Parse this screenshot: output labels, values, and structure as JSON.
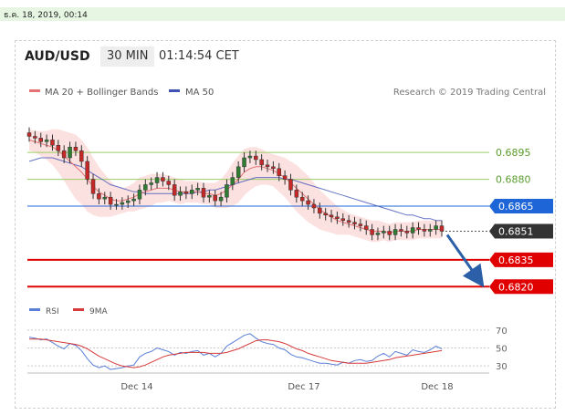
{
  "timestamp": "ธ.ค. 18, 2019, 00:14",
  "header": {
    "pair": "AUD/USD",
    "timeframe": "30 MIN",
    "time": "01:14:54 CET"
  },
  "legend": {
    "item1": "MA 20 + Bollinger Bands",
    "item2": "MA 50",
    "credit": "Research © 2019 Trading Central",
    "rsi": "RSI",
    "rsi_ma": "9MA"
  },
  "colors": {
    "ma20": "#e57373",
    "ma50": "#3f51b5",
    "band": "#fbd7d7",
    "support": "#e00000",
    "resistance": "#7cb342",
    "pivot": "#1e66d8",
    "price": "#333333",
    "rsi": "#5a7fd6",
    "rsi_ma": "#d63a3a",
    "arrow": "#2b5fa8"
  },
  "chart_data": {
    "type": "line",
    "main": {
      "series": "candlestick price with MA 20, Bollinger Bands and MA 50",
      "ylim": [
        0.6812,
        0.6918
      ],
      "x_ticks": [
        "Dec 14",
        "Dec 17",
        "Dec 18"
      ],
      "close": [
        0.6904,
        0.6903,
        0.6901,
        0.6902,
        0.6899,
        0.6896,
        0.6892,
        0.6898,
        0.6896,
        0.689,
        0.688,
        0.6872,
        0.6869,
        0.687,
        0.6866,
        0.6866,
        0.6867,
        0.6868,
        0.6869,
        0.6874,
        0.6877,
        0.6878,
        0.6881,
        0.6879,
        0.6877,
        0.6871,
        0.6873,
        0.6872,
        0.6874,
        0.6875,
        0.687,
        0.6871,
        0.6868,
        0.687,
        0.6877,
        0.6881,
        0.6887,
        0.6892,
        0.6893,
        0.6891,
        0.6888,
        0.6887,
        0.6886,
        0.6882,
        0.688,
        0.6874,
        0.687,
        0.6868,
        0.6866,
        0.6864,
        0.6861,
        0.686,
        0.6859,
        0.6858,
        0.6857,
        0.6856,
        0.6855,
        0.6854,
        0.6852,
        0.6849,
        0.685,
        0.6851,
        0.6849,
        0.6852,
        0.6851,
        0.685,
        0.6853,
        0.6852,
        0.6851,
        0.6852,
        0.6854,
        0.6851
      ],
      "ma20": [
        0.6902,
        0.6901,
        0.69,
        0.6899,
        0.6898,
        0.6896,
        0.6893,
        0.689,
        0.6887,
        0.6884,
        0.688,
        0.6876,
        0.6873,
        0.6871,
        0.6869,
        0.6868,
        0.6868,
        0.6869,
        0.687,
        0.6872,
        0.6873,
        0.6874,
        0.6875,
        0.6875,
        0.6875,
        0.6874,
        0.6873,
        0.6873,
        0.6873,
        0.6873,
        0.6872,
        0.6872,
        0.6871,
        0.6872,
        0.6874,
        0.6877,
        0.688,
        0.6884,
        0.6886,
        0.6887,
        0.6887,
        0.6886,
        0.6885,
        0.6883,
        0.6881,
        0.6878,
        0.6875,
        0.6872,
        0.6869,
        0.6866,
        0.6863,
        0.6861,
        0.6859,
        0.6857,
        0.6856,
        0.6855,
        0.6854,
        0.6853,
        0.6852,
        0.6851,
        0.6851,
        0.6851,
        0.685,
        0.6851,
        0.6851,
        0.6851,
        0.6851,
        0.6852,
        0.6852,
        0.6852,
        0.6852,
        0.6852
      ],
      "ma50": [
        0.689,
        0.6891,
        0.6892,
        0.6892,
        0.6892,
        0.6891,
        0.689,
        0.6889,
        0.6888,
        0.6887,
        0.6885,
        0.6883,
        0.6881,
        0.6879,
        0.6877,
        0.6876,
        0.6875,
        0.6874,
        0.6873,
        0.6873,
        0.6872,
        0.6872,
        0.6872,
        0.6872,
        0.6872,
        0.6872,
        0.6872,
        0.6872,
        0.6872,
        0.6873,
        0.6873,
        0.6874,
        0.6874,
        0.6875,
        0.6876,
        0.6877,
        0.6878,
        0.6879,
        0.688,
        0.6881,
        0.6881,
        0.6881,
        0.6881,
        0.6881,
        0.688,
        0.688,
        0.6879,
        0.6878,
        0.6877,
        0.6876,
        0.6875,
        0.6874,
        0.6873,
        0.6872,
        0.6871,
        0.687,
        0.6869,
        0.6868,
        0.6867,
        0.6866,
        0.6865,
        0.6864,
        0.6863,
        0.6862,
        0.6861,
        0.686,
        0.686,
        0.6859,
        0.6858,
        0.6858,
        0.6857,
        0.6857
      ],
      "bandwidth": [
        0.0006,
        0.0006,
        0.0007,
        0.0008,
        0.001,
        0.0012,
        0.0014,
        0.0016,
        0.0018,
        0.0018,
        0.0018,
        0.0016,
        0.0014,
        0.0012,
        0.001,
        0.0008,
        0.0007,
        0.0007,
        0.0008,
        0.0009,
        0.0009,
        0.0009,
        0.0008,
        0.0008,
        0.0007,
        0.0007,
        0.0007,
        0.0006,
        0.0006,
        0.0006,
        0.0006,
        0.0006,
        0.0007,
        0.0008,
        0.001,
        0.0012,
        0.0013,
        0.0013,
        0.0012,
        0.0011,
        0.001,
        0.0009,
        0.0009,
        0.001,
        0.0011,
        0.0012,
        0.0013,
        0.0013,
        0.0013,
        0.0012,
        0.0011,
        0.001,
        0.0009,
        0.0008,
        0.0007,
        0.0006,
        0.0006,
        0.0006,
        0.0006,
        0.0006,
        0.0006,
        0.0005,
        0.0005,
        0.0005,
        0.0005,
        0.0005,
        0.0005,
        0.0005,
        0.0005,
        0.0005,
        0.0005,
        0.0005
      ]
    },
    "levels": [
      {
        "value": "0.6895",
        "kind": "resistance"
      },
      {
        "value": "0.6880",
        "kind": "resistance"
      },
      {
        "value": "0.6865",
        "kind": "pivot"
      },
      {
        "value": "0.6851",
        "kind": "price"
      },
      {
        "value": "0.6835",
        "kind": "support"
      },
      {
        "value": "0.6820",
        "kind": "support"
      }
    ],
    "rsi": {
      "ylim": [
        20,
        80
      ],
      "ticks": [
        "70",
        "50",
        "30"
      ],
      "values": [
        62,
        61,
        59,
        60,
        56,
        52,
        49,
        55,
        53,
        47,
        38,
        31,
        28,
        30,
        26,
        27,
        28,
        30,
        31,
        40,
        44,
        46,
        50,
        48,
        46,
        42,
        45,
        44,
        46,
        47,
        42,
        44,
        40,
        44,
        52,
        56,
        60,
        64,
        66,
        61,
        57,
        55,
        54,
        50,
        48,
        43,
        40,
        39,
        37,
        35,
        33,
        33,
        32,
        31,
        34,
        33,
        36,
        37,
        35,
        36,
        41,
        44,
        40,
        46,
        44,
        42,
        48,
        46,
        45,
        48,
        52,
        49
      ],
      "ma9": [
        60,
        60,
        60,
        59,
        58,
        57,
        56,
        55,
        54,
        52,
        49,
        45,
        41,
        38,
        35,
        32,
        30,
        29,
        28,
        29,
        31,
        34,
        37,
        40,
        42,
        43,
        44,
        45,
        45,
        45,
        45,
        44,
        44,
        44,
        45,
        47,
        49,
        52,
        55,
        58,
        59,
        59,
        58,
        57,
        55,
        52,
        49,
        47,
        44,
        42,
        40,
        38,
        36,
        35,
        34,
        33,
        33,
        33,
        33,
        34,
        35,
        36,
        37,
        39,
        40,
        41,
        42,
        43,
        44,
        45,
        46,
        47
      ]
    }
  }
}
